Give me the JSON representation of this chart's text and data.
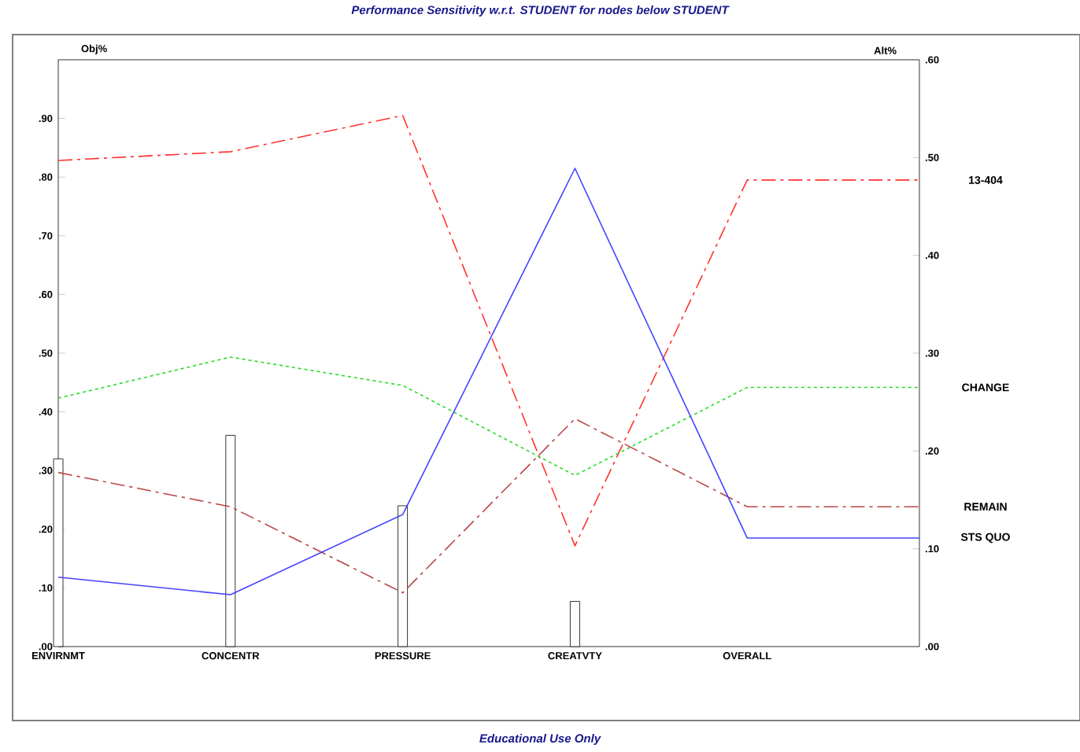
{
  "chart_data": {
    "type": "line",
    "title": "Performance Sensitivity w.r.t. STUDENT for nodes below STUDENT",
    "ylabel": "Obj%",
    "y2label": "Alt%",
    "annotations": [
      "Educational Use Only"
    ],
    "categories": [
      "ENVIRNMT",
      "CONCENTR",
      "PRESSURE",
      "CREATVTY",
      "OVERALL",
      null
    ],
    "ylim": [
      0,
      1
    ],
    "yticks": [
      {
        "value": 0,
        "label": ".00"
      },
      {
        "value": 0.1,
        "label": ".10"
      },
      {
        "value": 0.2,
        "label": ".20"
      },
      {
        "value": 0.3,
        "label": ".30"
      },
      {
        "value": 0.4,
        "label": ".40"
      },
      {
        "value": 0.5,
        "label": ".50"
      },
      {
        "value": 0.6,
        "label": ".60"
      },
      {
        "value": 0.7,
        "label": ".70"
      },
      {
        "value": 0.8,
        "label": ".80"
      },
      {
        "value": 0.9,
        "label": ".90"
      }
    ],
    "y2lim": [
      0,
      0.6
    ],
    "y2ticks": [
      {
        "value": 0,
        "label": ".00"
      },
      {
        "value": 0.1,
        "label": ".10"
      },
      {
        "value": 0.2,
        "label": ".20"
      },
      {
        "value": 0.3,
        "label": ".30"
      },
      {
        "value": 0.4,
        "label": ".40"
      },
      {
        "value": 0.5,
        "label": ".50"
      },
      {
        "value": 0.6,
        "label": ".60"
      }
    ],
    "series": [
      {
        "type": "bar",
        "color": "#ffffff",
        "values": [
          0.32,
          0.36,
          0.24,
          0.077,
          null,
          null
        ]
      },
      {
        "name": "13-404",
        "axis": "y2",
        "color": "#ff3333",
        "line_style": "dashed",
        "values": [
          0.497,
          0.506,
          0.543,
          0.103,
          0.477,
          0.477
        ]
      },
      {
        "name": "CHANGE",
        "axis": "y2",
        "color": "#22dd22",
        "line_style": "dotted",
        "values": [
          0.254,
          0.296,
          0.267,
          0.175,
          0.265,
          0.265
        ]
      },
      {
        "name": "REMAIN",
        "axis": "y2",
        "color": "#bb4444",
        "line_style": "dashed",
        "values": [
          0.178,
          0.143,
          0.055,
          0.233,
          0.143,
          0.143
        ]
      },
      {
        "name": "STS QUO",
        "axis": "y2",
        "color": "#4444ff",
        "line_style": "solid",
        "values": [
          0.071,
          0.053,
          0.135,
          0.489,
          0.111,
          0.111
        ]
      }
    ]
  }
}
